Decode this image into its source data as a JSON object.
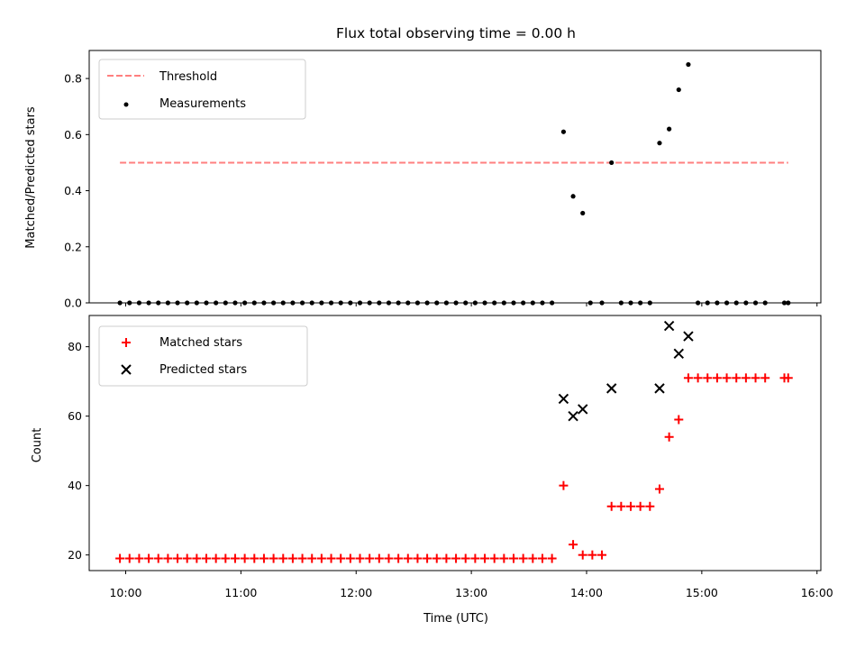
{
  "chart_data": [
    {
      "type": "scatter",
      "title": "Flux total observing time = 0.00 h",
      "ylabel": "Matched/Predicted stars",
      "xlabel": "",
      "x_range": [
        "09:41",
        "16:02"
      ],
      "ylim": [
        0,
        0.9
      ],
      "y_ticks": [
        "0.0",
        "0.2",
        "0.4",
        "0.6",
        "0.8"
      ],
      "legend_position": "upper left",
      "grid": false,
      "threshold": {
        "name": "Threshold",
        "value": 0.5,
        "x_start": "09:57",
        "x_end": "15:45",
        "color": "#ff7f7f",
        "style": "dashed"
      },
      "series": [
        {
          "name": "Measurements",
          "color": "#000000",
          "marker": "dot",
          "points": [
            [
              "09:57",
              0
            ],
            [
              "10:02",
              0
            ],
            [
              "10:07",
              0
            ],
            [
              "10:12",
              0
            ],
            [
              "10:17",
              0
            ],
            [
              "10:22",
              0
            ],
            [
              "10:27",
              0
            ],
            [
              "10:32",
              0
            ],
            [
              "10:37",
              0
            ],
            [
              "10:42",
              0
            ],
            [
              "10:47",
              0
            ],
            [
              "10:52",
              0
            ],
            [
              "10:57",
              0
            ],
            [
              "11:02",
              0
            ],
            [
              "11:07",
              0
            ],
            [
              "11:12",
              0
            ],
            [
              "11:17",
              0
            ],
            [
              "11:22",
              0
            ],
            [
              "11:27",
              0
            ],
            [
              "11:32",
              0
            ],
            [
              "11:37",
              0
            ],
            [
              "11:42",
              0
            ],
            [
              "11:47",
              0
            ],
            [
              "11:52",
              0
            ],
            [
              "11:57",
              0
            ],
            [
              "12:02",
              0
            ],
            [
              "12:07",
              0
            ],
            [
              "12:12",
              0
            ],
            [
              "12:17",
              0
            ],
            [
              "12:22",
              0
            ],
            [
              "12:27",
              0
            ],
            [
              "12:32",
              0
            ],
            [
              "12:37",
              0
            ],
            [
              "12:42",
              0
            ],
            [
              "12:47",
              0
            ],
            [
              "12:52",
              0
            ],
            [
              "12:57",
              0
            ],
            [
              "13:02",
              0
            ],
            [
              "13:07",
              0
            ],
            [
              "13:12",
              0
            ],
            [
              "13:17",
              0
            ],
            [
              "13:22",
              0
            ],
            [
              "13:27",
              0
            ],
            [
              "13:32",
              0
            ],
            [
              "13:37",
              0
            ],
            [
              "13:42",
              0
            ],
            [
              "13:48",
              0.61
            ],
            [
              "13:53",
              0.38
            ],
            [
              "13:58",
              0.32
            ],
            [
              "14:02",
              0
            ],
            [
              "14:08",
              0
            ],
            [
              "14:13",
              0.5
            ],
            [
              "14:18",
              0
            ],
            [
              "14:23",
              0
            ],
            [
              "14:28",
              0
            ],
            [
              "14:33",
              0
            ],
            [
              "14:38",
              0.57
            ],
            [
              "14:43",
              0.62
            ],
            [
              "14:48",
              0.76
            ],
            [
              "14:53",
              0.85
            ],
            [
              "14:58",
              0
            ],
            [
              "15:03",
              0
            ],
            [
              "15:08",
              0
            ],
            [
              "15:13",
              0
            ],
            [
              "15:18",
              0
            ],
            [
              "15:23",
              0
            ],
            [
              "15:28",
              0
            ],
            [
              "15:33",
              0
            ],
            [
              "15:43",
              0
            ],
            [
              "15:45",
              0
            ]
          ]
        }
      ]
    },
    {
      "type": "scatter",
      "title": "",
      "ylabel": "Count",
      "xlabel": "Time (UTC)",
      "x_range": [
        "09:41",
        "16:02"
      ],
      "x_ticks": [
        "10:00",
        "11:00",
        "12:00",
        "13:00",
        "14:00",
        "15:00",
        "16:00"
      ],
      "ylim": [
        15.5,
        89
      ],
      "y_ticks": [
        "20",
        "40",
        "60",
        "80"
      ],
      "legend_position": "upper left",
      "grid": false,
      "series": [
        {
          "name": "Matched stars",
          "color": "#ff0000",
          "marker": "plus",
          "points": [
            [
              "09:57",
              19
            ],
            [
              "10:02",
              19
            ],
            [
              "10:07",
              19
            ],
            [
              "10:12",
              19
            ],
            [
              "10:17",
              19
            ],
            [
              "10:22",
              19
            ],
            [
              "10:27",
              19
            ],
            [
              "10:32",
              19
            ],
            [
              "10:37",
              19
            ],
            [
              "10:42",
              19
            ],
            [
              "10:47",
              19
            ],
            [
              "10:52",
              19
            ],
            [
              "10:57",
              19
            ],
            [
              "11:02",
              19
            ],
            [
              "11:07",
              19
            ],
            [
              "11:12",
              19
            ],
            [
              "11:17",
              19
            ],
            [
              "11:22",
              19
            ],
            [
              "11:27",
              19
            ],
            [
              "11:32",
              19
            ],
            [
              "11:37",
              19
            ],
            [
              "11:42",
              19
            ],
            [
              "11:47",
              19
            ],
            [
              "11:52",
              19
            ],
            [
              "11:57",
              19
            ],
            [
              "12:02",
              19
            ],
            [
              "12:07",
              19
            ],
            [
              "12:12",
              19
            ],
            [
              "12:17",
              19
            ],
            [
              "12:22",
              19
            ],
            [
              "12:27",
              19
            ],
            [
              "12:32",
              19
            ],
            [
              "12:37",
              19
            ],
            [
              "12:42",
              19
            ],
            [
              "12:47",
              19
            ],
            [
              "12:52",
              19
            ],
            [
              "12:57",
              19
            ],
            [
              "13:02",
              19
            ],
            [
              "13:07",
              19
            ],
            [
              "13:12",
              19
            ],
            [
              "13:17",
              19
            ],
            [
              "13:22",
              19
            ],
            [
              "13:27",
              19
            ],
            [
              "13:32",
              19
            ],
            [
              "13:37",
              19
            ],
            [
              "13:42",
              19
            ],
            [
              "13:48",
              40
            ],
            [
              "13:53",
              23
            ],
            [
              "13:58",
              20
            ],
            [
              "14:03",
              20
            ],
            [
              "14:08",
              20
            ],
            [
              "14:13",
              34
            ],
            [
              "14:18",
              34
            ],
            [
              "14:23",
              34
            ],
            [
              "14:28",
              34
            ],
            [
              "14:33",
              34
            ],
            [
              "14:38",
              39
            ],
            [
              "14:43",
              54
            ],
            [
              "14:48",
              59
            ],
            [
              "14:53",
              71
            ],
            [
              "14:58",
              71
            ],
            [
              "15:03",
              71
            ],
            [
              "15:08",
              71
            ],
            [
              "15:13",
              71
            ],
            [
              "15:18",
              71
            ],
            [
              "15:23",
              71
            ],
            [
              "15:28",
              71
            ],
            [
              "15:33",
              71
            ],
            [
              "15:43",
              71
            ],
            [
              "15:45",
              71
            ]
          ]
        },
        {
          "name": "Predicted stars",
          "color": "#000000",
          "marker": "x",
          "points": [
            [
              "13:48",
              65
            ],
            [
              "13:53",
              60
            ],
            [
              "13:58",
              62
            ],
            [
              "14:13",
              68
            ],
            [
              "14:38",
              68
            ],
            [
              "14:43",
              86
            ],
            [
              "14:48",
              78
            ],
            [
              "14:53",
              83
            ]
          ]
        }
      ]
    }
  ]
}
